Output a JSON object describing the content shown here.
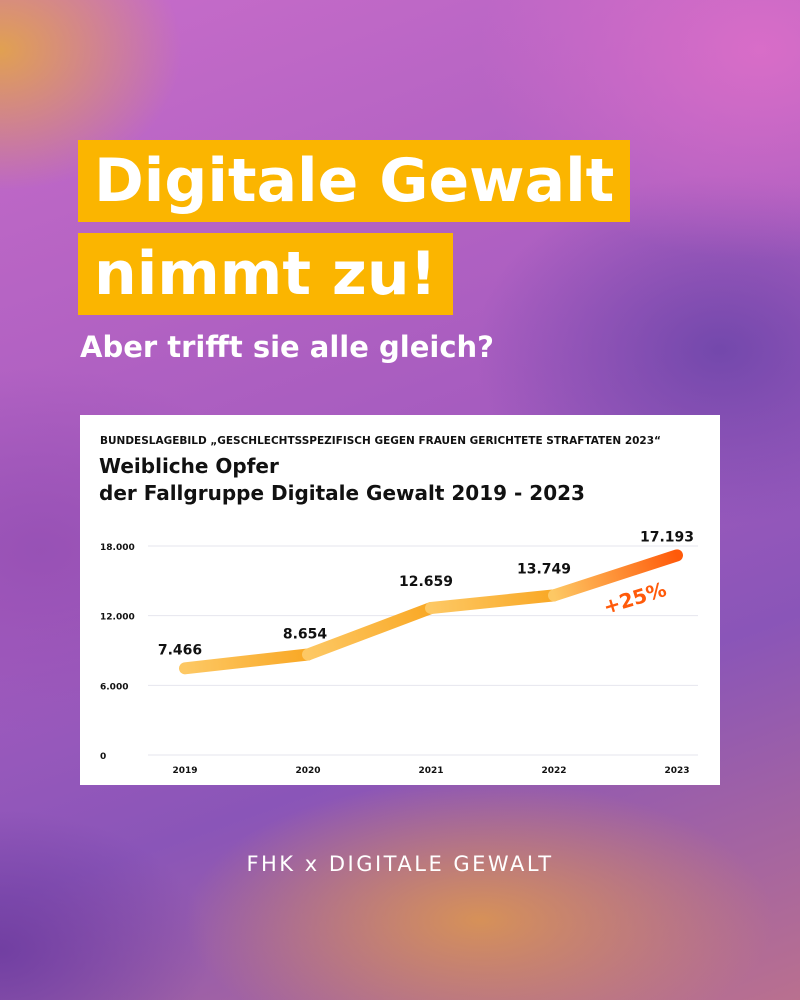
{
  "headline": {
    "line1": "Digitale Gewalt",
    "line2": "nimmt zu!"
  },
  "subheadline": "Aber trifft sie alle gleich?",
  "footer": "FHK x DIGITALE GEWALT",
  "colors": {
    "highlight": "#fbb500",
    "line_start": "#fdc864",
    "line_mid": "#f9a825",
    "line_end": "#ff5a0a",
    "annotation": "#ff5a0a"
  },
  "chart_data": {
    "type": "line",
    "source": "BUNDESLAGEBILD „GESCHLECHTSSPEZIFISCH GEGEN FRAUEN GERICHTETE STRAFTATEN 2023“",
    "title_line1": "Weibliche Opfer",
    "title_line2": "der Fallgruppe Digitale Gewalt 2019 - 2023",
    "categories": [
      "2019",
      "2020",
      "2021",
      "2022",
      "2023"
    ],
    "values": [
      7466,
      8654,
      12659,
      13749,
      17193
    ],
    "data_labels": [
      "7.466",
      "8.654",
      "12.659",
      "13.749",
      "17.193"
    ],
    "yticks": [
      0,
      6000,
      12000,
      18000
    ],
    "ytick_labels": [
      "0",
      "6.000",
      "12.000",
      "18.000"
    ],
    "ylim": [
      0,
      18000
    ],
    "grid": true,
    "annotation": "+25%"
  }
}
